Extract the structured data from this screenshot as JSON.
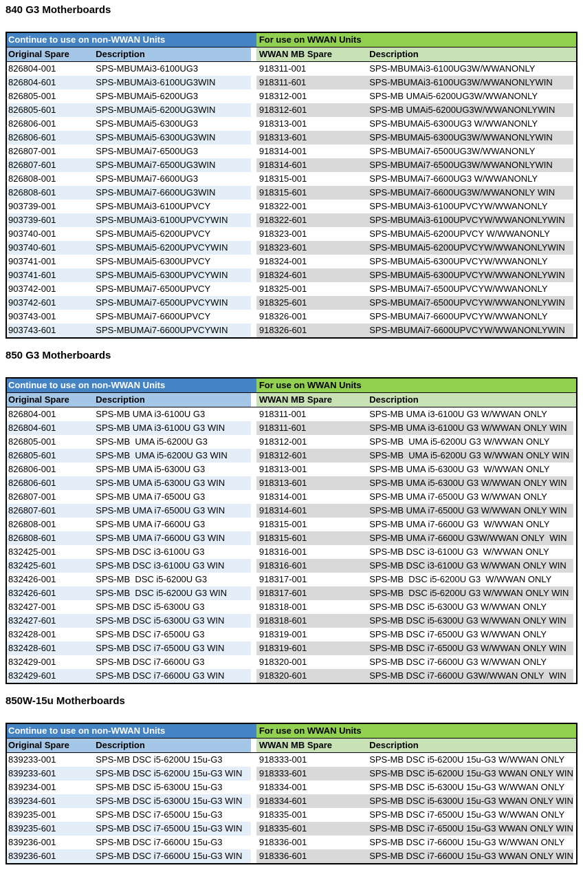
{
  "document": {
    "background": "#FFFFFF"
  },
  "theme": {
    "band_blue": "#4483C4",
    "band_green": "#92D050",
    "subheader_blue": "#A4C6E7",
    "subheader_green": "#C9E2B5",
    "stripe_blue": "#E4EEF8",
    "stripe_gray": "#D9D9D9",
    "border_black": "#000000",
    "band_blue_text": "#FFFFFF"
  },
  "sections": [
    {
      "title": "840 G3 Motherboards",
      "non_wwan_header": "Continue to use on non-WWAN Units",
      "wwan_header": "For use on WWAN Units",
      "columns": [
        "Original Spare",
        "Description",
        "WWAN MB Spare",
        "Description"
      ],
      "rows": [
        [
          "826804-001",
          "SPS-MBUMAi3-6100UG3",
          "918311-001",
          "SPS-MBUMAi3-6100UG3W/WWANONLY"
        ],
        [
          "826804-601",
          "SPS-MBUMAi3-6100UG3WIN",
          "918311-601",
          "SPS-MBUMAi3-6100UG3W/WWANONLYWIN"
        ],
        [
          "826805-001",
          "SPS-MBUMAi5-6200UG3",
          "918312-001",
          "SPS-MB UMAi5-6200UG3W/WWANONLY"
        ],
        [
          "826805-601",
          "SPS-MBUMAi5-6200UG3WIN",
          "918312-601",
          "SPS-MB UMAi5-6200UG3W/WWANONLYWIN"
        ],
        [
          "826806-001",
          "SPS-MBUMAi5-6300UG3",
          "918313-001",
          "SPS-MBUMAi5-6300UG3 W/WWANONLY"
        ],
        [
          "826806-601",
          "SPS-MBUMAi5-6300UG3WIN",
          "918313-601",
          "SPS-MBUMAi5-6300UG3W/WWANONLYWIN"
        ],
        [
          "826807-001",
          "SPS-MBUMAi7-6500UG3",
          "918314-001",
          "SPS-MBUMAi7-6500UG3W/WWANONLY"
        ],
        [
          "826807-601",
          "SPS-MBUMAi7-6500UG3WIN",
          "918314-601",
          "SPS-MBUMAi7-6500UG3W/WWANONLYWIN"
        ],
        [
          "826808-001",
          "SPS-MBUMAi7-6600UG3",
          "918315-001",
          "SPS-MBUMAi7-6600UG3 W/WWANONLY"
        ],
        [
          "826808-601",
          "SPS-MBUMAi7-6600UG3WIN",
          "918315-601",
          "SPS-MBUMAi7-6600UG3W/WWANONLY WIN"
        ],
        [
          "903739-001",
          "SPS-MBUMAi3-6100UPVCY",
          "918322-001",
          "SPS-MBUMAi3-6100UPVCYW/WWANONLY"
        ],
        [
          "903739-601",
          "SPS-MBUMAi3-6100UPVCYWIN",
          "918322-601",
          "SPS-MBUMAi3-6100UPVCYW/WWANONLYWIN"
        ],
        [
          "903740-001",
          "SPS-MBUMAi5-6200UPVCY",
          "918323-001",
          "SPS-MBUMAi5-6200UPVCY W/WWANONLY"
        ],
        [
          "903740-601",
          "SPS-MBUMAi5-6200UPVCYWIN",
          "918323-601",
          "SPS-MBUMAi5-6200UPVCYW/WWANONLYWIN"
        ],
        [
          "903741-001",
          "SPS-MBUMAi5-6300UPVCY",
          "918324-001",
          "SPS-MBUMAi5-6300UPVCYW/WWANONLY"
        ],
        [
          "903741-601",
          "SPS-MBUMAi5-6300UPVCYWIN",
          "918324-601",
          "SPS-MBUMAi5-6300UPVCYW/WWANONLYWIN"
        ],
        [
          "903742-001",
          "SPS-MBUMAi7-6500UPVCY",
          "918325-001",
          "SPS-MBUMAi7-6500UPVCYW/WWANONLY"
        ],
        [
          "903742-601",
          "SPS-MBUMAi7-6500UPVCYWIN",
          "918325-601",
          "SPS-MBUMAi7-6500UPVCYW/WWANONLYWIN"
        ],
        [
          "903743-001",
          "SPS-MBUMAi7-6600UPVCY",
          "918326-001",
          "SPS-MBUMAi7-6600UPVCYW/WWANONLY"
        ],
        [
          "903743-601",
          "SPS-MBUMAi7-6600UPVCYWIN",
          "918326-601",
          "SPS-MBUMAi7-6600UPVCYW/WWANONLYWIN"
        ]
      ]
    },
    {
      "title": "850 G3 Motherboards",
      "non_wwan_header": "Continue to use on non-WWAN Units",
      "wwan_header": "For use on WWAN Units",
      "columns": [
        "Original Spare",
        "Description",
        "WWAN MB Spare",
        "Description"
      ],
      "rows": [
        [
          "826804-001",
          "SPS-MB UMA i3-6100U G3",
          "918311-001",
          "SPS-MB UMA i3-6100U G3 W/WWAN ONLY"
        ],
        [
          "826804-601",
          "SPS-MB UMA i3-6100U G3 WIN",
          "918311-601",
          "SPS-MB UMA i3-6100U G3 W/WWAN ONLY WIN"
        ],
        [
          "826805-001",
          "SPS-MB  UMA i5-6200U G3",
          "918312-001",
          "SPS-MB  UMA i5-6200U G3 W/WWAN ONLY"
        ],
        [
          "826805-601",
          "SPS-MB  UMA i5-6200U G3 WIN",
          "918312-601",
          "SPS-MB  UMA i5-6200U G3 W/WWAN ONLY WIN"
        ],
        [
          "826806-001",
          "SPS-MB UMA i5-6300U G3",
          "918313-001",
          "SPS-MB UMA i5-6300U G3  W/WWAN ONLY"
        ],
        [
          "826806-601",
          "SPS-MB UMA i5-6300U G3 WIN",
          "918313-601",
          "SPS-MB UMA i5-6300U G3 W/WWAN ONLY WIN"
        ],
        [
          "826807-001",
          "SPS-MB UMA i7-6500U G3",
          "918314-001",
          "SPS-MB UMA i7-6500U G3 W/WWAN ONLY"
        ],
        [
          "826807-601",
          "SPS-MB UMA i7-6500U G3 WIN",
          "918314-601",
          "SPS-MB UMA i7-6500U G3 W/WWAN ONLY WIN"
        ],
        [
          "826808-001",
          "SPS-MB UMA i7-6600U G3",
          "918315-001",
          "SPS-MB UMA i7-6600U G3  W/WWAN ONLY"
        ],
        [
          "826808-601",
          "SPS-MB UMA i7-6600U G3 WIN",
          "918315-601",
          "SPS-MB UMA i7-6600U G3W/WWAN ONLY  WIN"
        ],
        [
          "832425-001",
          "SPS-MB DSC i3-6100U G3",
          "918316-001",
          "SPS-MB DSC i3-6100U G3  W/WWAN ONLY"
        ],
        [
          "832425-601",
          "SPS-MB DSC i3-6100U G3 WIN",
          "918316-601",
          "SPS-MB DSC i3-6100U G3 W/WWAN ONLY WIN"
        ],
        [
          "832426-001",
          "SPS-MB  DSC i5-6200U G3",
          "918317-001",
          "SPS-MB  DSC i5-6200U G3  W/WWAN ONLY"
        ],
        [
          "832426-601",
          "SPS-MB  DSC i5-6200U G3 WIN",
          "918317-601",
          "SPS-MB  DSC i5-6200U G3 W/WWAN ONLY WIN"
        ],
        [
          "832427-001",
          "SPS-MB DSC i5-6300U G3",
          "918318-001",
          "SPS-MB DSC i5-6300U G3 W/WWAN ONLY"
        ],
        [
          "832427-601",
          "SPS-MB DSC i5-6300U G3 WIN",
          "918318-601",
          "SPS-MB DSC i5-6300U G3 W/WWAN ONLY WIN"
        ],
        [
          "832428-001",
          "SPS-MB DSC i7-6500U G3",
          "918319-001",
          "SPS-MB DSC i7-6500U G3 W/WWAN ONLY"
        ],
        [
          "832428-601",
          "SPS-MB DSC i7-6500U G3 WIN",
          "918319-601",
          "SPS-MB DSC i7-6500U G3 W/WWAN ONLY WIN"
        ],
        [
          "832429-001",
          "SPS-MB DSC i7-6600U G3",
          "918320-001",
          "SPS-MB DSC i7-6600U G3 W/WWAN ONLY"
        ],
        [
          "832429-601",
          "SPS-MB DSC i7-6600U G3 WIN",
          "918320-601",
          "SPS-MB DSC i7-6600U G3W/WWAN ONLY  WIN"
        ]
      ]
    },
    {
      "title": "850W-15u Motherboards",
      "non_wwan_header": "Continue to use on non-WWAN Units",
      "wwan_header": "For use on WWAN Units",
      "columns": [
        "Original Spare",
        "Description",
        "WWAN MB Spare",
        "Description"
      ],
      "rows": [
        [
          "839233-001",
          "SPS-MB DSC i5-6200U 15u-G3",
          "918333-001",
          "SPS-MB DSC i5-6200U 15u-G3 W/WWAN ONLY"
        ],
        [
          "839233-601",
          "SPS-MB DSC i5-6200U 15u-G3 WIN",
          "918333-601",
          "SPS-MB DSC i5-6200U 15u-G3 WWAN ONLY WIN"
        ],
        [
          "839234-001",
          "SPS-MB DSC i5-6300U 15u-G3",
          "918334-001",
          "SPS-MB DSC i5-6300U 15u-G3 W/WWAN ONLY"
        ],
        [
          "839234-601",
          "SPS-MB DSC i5-6300U 15u-G3 WIN",
          "918334-601",
          "SPS-MB DSC i5-6300U 15u-G3 WWAN ONLY WIN"
        ],
        [
          "839235-001",
          "SPS-MB DSC i7-6500U 15u-G3",
          "918335-001",
          "SPS-MB DSC i7-6500U 15u-G3 W/WWAN ONLY"
        ],
        [
          "839235-601",
          "SPS-MB DSC i7-6500U 15u-G3 WIN",
          "918335-601",
          "SPS-MB DSC i7-6500U 15u-G3 WWAN ONLY WIN"
        ],
        [
          "839236-001",
          "SPS-MB DSC i7-6600U 15u-G3",
          "918336-001",
          "SPS-MB DSC i7-6600U 15u-G3 W/WWAN ONLY"
        ],
        [
          "839236-601",
          "SPS-MB DSC i7-6600U 15u-G3 WIN",
          "918336-601",
          "SPS-MB DSC i7-6600U 15u-G3 WWAN ONLY WIN"
        ]
      ]
    }
  ]
}
